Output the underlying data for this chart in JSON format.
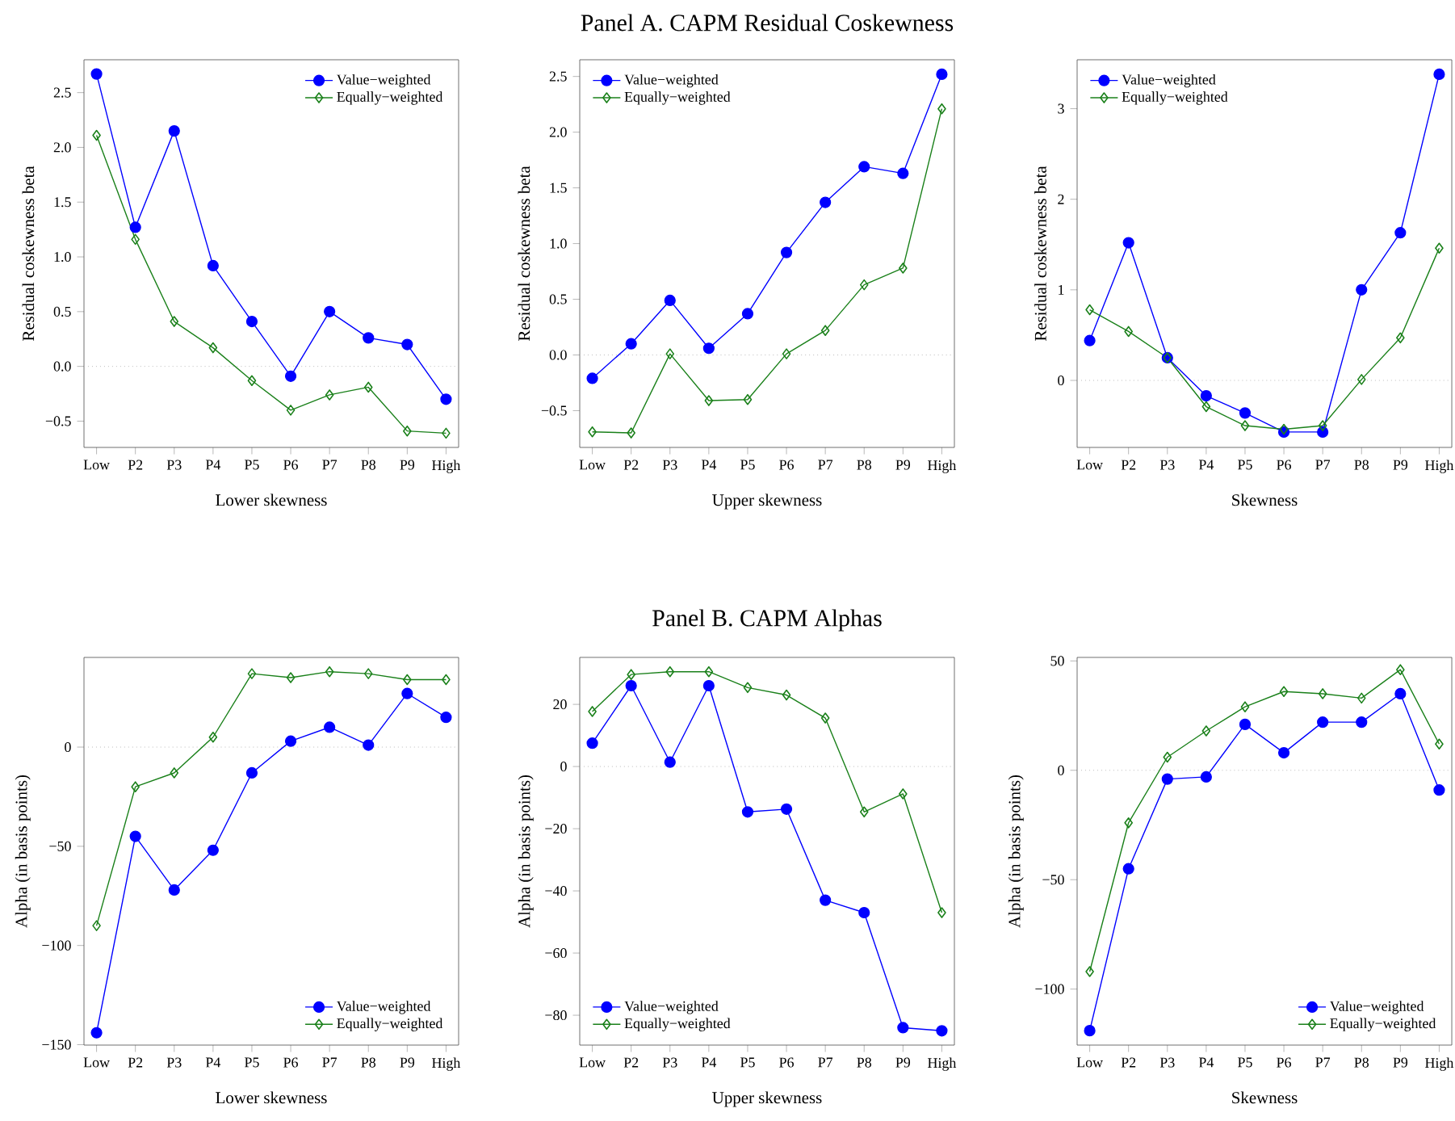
{
  "chart_data": [
    {
      "type": "line",
      "xlabel": "Lower skewness",
      "ylabel": "Residual coskewness beta",
      "categories": [
        "Low",
        "P2",
        "P3",
        "P4",
        "P5",
        "P6",
        "P7",
        "P8",
        "P9",
        "High"
      ],
      "ylim": [
        -0.74,
        2.8
      ],
      "yticks": [
        {
          "value": -0.5,
          "label": "−0.5"
        },
        {
          "value": 0,
          "label": "0.0"
        },
        {
          "value": 0.5,
          "label": "0.5"
        },
        {
          "value": 1,
          "label": "1.0"
        },
        {
          "value": 1.5,
          "label": "1.5"
        },
        {
          "value": 2,
          "label": "2.0"
        },
        {
          "value": 2.5,
          "label": "2.5"
        }
      ],
      "grid": false,
      "legend": "top right",
      "line_style": "solid",
      "ref_lines": [
        {
          "axis": "y",
          "value": 0,
          "color": "#bbbbbb",
          "line_style": "dotted"
        }
      ],
      "series": [
        {
          "name": "Value−weighted",
          "color": "#0000ff",
          "marker": "circle",
          "values": [
            2.67,
            1.27,
            2.15,
            0.92,
            0.41,
            -0.09,
            0.5,
            0.26,
            0.2,
            -0.3
          ]
        },
        {
          "name": "Equally−weighted",
          "color": "#1a801a",
          "marker": "diamond",
          "values": [
            2.11,
            1.16,
            0.41,
            0.17,
            -0.13,
            -0.4,
            -0.26,
            -0.19,
            -0.59,
            -0.61
          ]
        }
      ]
    },
    {
      "type": "line",
      "title": "Panel A. CAPM Residual Coskewness",
      "xlabel": "Upper skewness",
      "ylabel": "Residual coskewness beta",
      "categories": [
        "Low",
        "P2",
        "P3",
        "P4",
        "P5",
        "P6",
        "P7",
        "P8",
        "P9",
        "High"
      ],
      "ylim": [
        -0.83,
        2.65
      ],
      "yticks": [
        {
          "value": -0.5,
          "label": "−0.5"
        },
        {
          "value": 0,
          "label": "0.0"
        },
        {
          "value": 0.5,
          "label": "0.5"
        },
        {
          "value": 1,
          "label": "1.0"
        },
        {
          "value": 1.5,
          "label": "1.5"
        },
        {
          "value": 2,
          "label": "2.0"
        },
        {
          "value": 2.5,
          "label": "2.5"
        }
      ],
      "grid": false,
      "legend": "top left",
      "line_style": "solid",
      "ref_lines": [
        {
          "axis": "y",
          "value": 0,
          "color": "#bbbbbb",
          "line_style": "dotted"
        }
      ],
      "series": [
        {
          "name": "Value−weighted",
          "color": "#0000ff",
          "marker": "circle",
          "values": [
            -0.21,
            0.1,
            0.49,
            0.06,
            0.37,
            0.92,
            1.37,
            1.69,
            1.63,
            2.52
          ]
        },
        {
          "name": "Equally−weighted",
          "color": "#1a801a",
          "marker": "diamond",
          "values": [
            -0.69,
            -0.7,
            0.01,
            -0.41,
            -0.4,
            0.01,
            0.22,
            0.63,
            0.78,
            2.21
          ]
        }
      ]
    },
    {
      "type": "line",
      "xlabel": "Skewness",
      "ylabel": "Residual coskewness beta",
      "categories": [
        "Low",
        "P2",
        "P3",
        "P4",
        "P5",
        "P6",
        "P7",
        "P8",
        "P9",
        "High"
      ],
      "ylim": [
        -0.74,
        3.54
      ],
      "yticks": [
        0,
        1,
        2,
        3
      ],
      "grid": false,
      "legend": "top left",
      "line_style": "solid",
      "ref_lines": [
        {
          "axis": "y",
          "value": 0,
          "color": "#bbbbbb",
          "line_style": "dotted"
        }
      ],
      "series": [
        {
          "name": "Value−weighted",
          "color": "#0000ff",
          "marker": "circle",
          "values": [
            0.44,
            1.52,
            0.25,
            -0.17,
            -0.36,
            -0.57,
            -0.57,
            1.0,
            1.63,
            3.38
          ]
        },
        {
          "name": "Equally−weighted",
          "color": "#1a801a",
          "marker": "diamond",
          "values": [
            0.78,
            0.54,
            0.25,
            -0.29,
            -0.5,
            -0.54,
            -0.5,
            0.01,
            0.47,
            1.46
          ]
        }
      ]
    },
    {
      "type": "line",
      "xlabel": "Lower skewness",
      "ylabel": "Alpha (in basis points)",
      "categories": [
        "Low",
        "P2",
        "P3",
        "P4",
        "P5",
        "P6",
        "P7",
        "P8",
        "P9",
        "High"
      ],
      "ylim": [
        -150.2,
        45.2
      ],
      "yticks": [
        {
          "value": -150,
          "label": "−150"
        },
        {
          "value": -100,
          "label": "−100"
        },
        {
          "value": -50,
          "label": "−50"
        },
        0
      ],
      "grid": false,
      "legend": "bottom right",
      "line_style": "solid",
      "ref_lines": [
        {
          "axis": "y",
          "value": 0,
          "color": "#bbbbbb",
          "line_style": "dotted"
        }
      ],
      "series": [
        {
          "name": "Value−weighted",
          "color": "#0000ff",
          "marker": "circle",
          "values": [
            -144,
            -45,
            -72,
            -52,
            -13,
            3,
            10,
            1,
            27,
            15
          ]
        },
        {
          "name": "Equally−weighted",
          "color": "#1a801a",
          "marker": "diamond",
          "values": [
            -90,
            -20,
            -13,
            5,
            37,
            35,
            38,
            37,
            34,
            34
          ]
        }
      ]
    },
    {
      "type": "line",
      "title": "Panel B. CAPM Alphas",
      "xlabel": "Upper skewness",
      "ylabel": "Alpha (in basis points)",
      "categories": [
        "Low",
        "P2",
        "P3",
        "P4",
        "P5",
        "P6",
        "P7",
        "P8",
        "P9",
        "High"
      ],
      "ylim": [
        -89.6,
        35.1
      ],
      "yticks": [
        {
          "value": -80,
          "label": "−80"
        },
        {
          "value": -60,
          "label": "−60"
        },
        {
          "value": -40,
          "label": "−40"
        },
        {
          "value": -20,
          "label": "−20"
        },
        0,
        20
      ],
      "grid": false,
      "legend": "bottom left",
      "line_style": "solid",
      "ref_lines": [
        {
          "axis": "y",
          "value": 0,
          "color": "#bbbbbb",
          "line_style": "dotted"
        }
      ],
      "series": [
        {
          "name": "Value−weighted",
          "color": "#0000ff",
          "marker": "circle",
          "values": [
            7.5,
            26,
            1.4,
            26,
            -14.6,
            -13.7,
            -43,
            -47,
            -84,
            -85
          ]
        },
        {
          "name": "Equally−weighted",
          "color": "#1a801a",
          "marker": "diamond",
          "values": [
            17.7,
            29.6,
            30.5,
            30.5,
            25.4,
            23,
            15.6,
            -14.6,
            -8.8,
            -47
          ]
        }
      ]
    },
    {
      "type": "line",
      "xlabel": "Skewness",
      "ylabel": "Alpha (in basis points)",
      "categories": [
        "Low",
        "P2",
        "P3",
        "P4",
        "P5",
        "P6",
        "P7",
        "P8",
        "P9",
        "High"
      ],
      "ylim": [
        -125.6,
        51.6
      ],
      "yticks": [
        {
          "value": -100,
          "label": "−100"
        },
        {
          "value": -50,
          "label": "−50"
        },
        0,
        50
      ],
      "grid": false,
      "legend": "bottom right",
      "line_style": "solid",
      "ref_lines": [
        {
          "axis": "y",
          "value": 0,
          "color": "#bbbbbb",
          "line_style": "dotted"
        }
      ],
      "series": [
        {
          "name": "Value−weighted",
          "color": "#0000ff",
          "marker": "circle",
          "values": [
            -119,
            -45,
            -4,
            -3,
            21,
            8,
            22,
            22,
            35,
            -9
          ]
        },
        {
          "name": "Equally−weighted",
          "color": "#1a801a",
          "marker": "diamond",
          "values": [
            -92,
            -24,
            6,
            18,
            29,
            36,
            35,
            33,
            46,
            12
          ]
        }
      ]
    }
  ]
}
